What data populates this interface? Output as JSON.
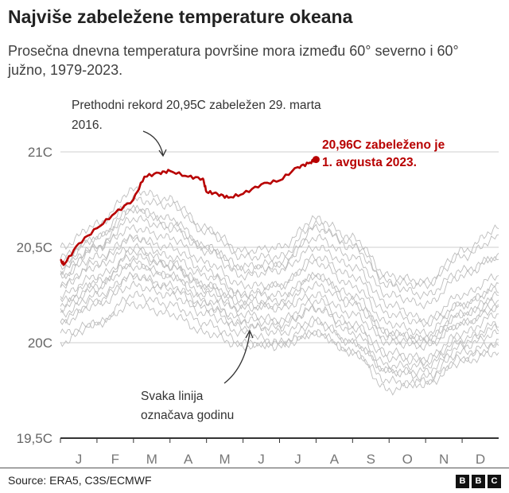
{
  "title": "Najviše zabeležene temperature okeana",
  "subtitle": "Prosečna dnevna temperatura površine mora između 60° severno i 60° južno, 1979-2023.",
  "source": "Source: ERA5, C3S/ECMWF",
  "logo": "BBC",
  "chart_data": {
    "type": "line",
    "title": "Najviše zabeležene temperature okeana",
    "ylim": [
      19.5,
      21.05
    ],
    "y_ticks": [
      21,
      20.5,
      20,
      19.5
    ],
    "y_tick_labels": [
      "21C",
      "20,5C",
      "20C",
      "19,5C"
    ],
    "x_tick_labels": [
      "J",
      "F",
      "M",
      "A",
      "M",
      "J",
      "J",
      "A",
      "S",
      "O",
      "N",
      "D"
    ],
    "grid": true,
    "highlight_series": {
      "year": "2023",
      "color": "#b80000",
      "x_month": [
        0,
        0.1,
        0.5,
        1,
        1.5,
        2,
        2.3,
        2.7,
        3.0,
        3.5,
        3.9,
        4.0,
        4.3,
        4.6,
        5.0,
        5.5,
        6.0,
        6.5,
        6.8,
        7.0
      ],
      "values": [
        20.43,
        20.41,
        20.52,
        20.6,
        20.68,
        20.75,
        20.87,
        20.89,
        20.9,
        20.87,
        20.86,
        20.79,
        20.78,
        20.76,
        20.78,
        20.83,
        20.85,
        20.92,
        20.94,
        20.96
      ]
    },
    "other_years_monthly": [
      [
        20.05,
        20.1,
        20.25,
        20.2,
        20.1,
        20.0,
        19.98,
        20.05,
        19.95,
        19.8,
        19.78,
        19.9,
        19.95
      ],
      [
        20.1,
        20.2,
        20.3,
        20.25,
        20.15,
        20.05,
        20.0,
        20.1,
        20.0,
        19.85,
        19.82,
        19.95,
        20.0
      ],
      [
        20.15,
        20.25,
        20.35,
        20.3,
        20.2,
        20.1,
        20.05,
        20.12,
        20.0,
        19.85,
        19.85,
        19.98,
        20.05
      ],
      [
        20.0,
        20.1,
        20.2,
        20.15,
        20.05,
        19.98,
        20.0,
        20.05,
        19.95,
        19.75,
        19.8,
        19.92,
        19.98
      ],
      [
        20.2,
        20.3,
        20.4,
        20.35,
        20.22,
        20.12,
        20.1,
        20.18,
        20.08,
        19.92,
        19.9,
        20.02,
        20.1
      ],
      [
        20.25,
        20.35,
        20.45,
        20.4,
        20.28,
        20.15,
        20.12,
        20.22,
        20.1,
        19.95,
        19.92,
        20.05,
        20.15
      ],
      [
        20.3,
        20.4,
        20.5,
        20.42,
        20.3,
        20.2,
        20.18,
        20.25,
        20.15,
        20.0,
        19.98,
        20.1,
        20.2
      ],
      [
        20.22,
        20.32,
        20.42,
        20.35,
        20.25,
        20.18,
        20.2,
        20.3,
        20.2,
        20.02,
        20.0,
        20.1,
        20.18
      ],
      [
        20.35,
        20.45,
        20.55,
        20.5,
        20.38,
        20.25,
        20.25,
        20.35,
        20.22,
        20.05,
        20.02,
        20.15,
        20.25
      ],
      [
        20.4,
        20.5,
        20.6,
        20.55,
        20.42,
        20.3,
        20.3,
        20.42,
        20.3,
        20.1,
        20.05,
        20.2,
        20.3
      ],
      [
        20.3,
        20.42,
        20.55,
        20.45,
        20.35,
        20.25,
        20.3,
        20.45,
        20.35,
        20.15,
        20.1,
        20.2,
        20.28
      ],
      [
        20.38,
        20.5,
        20.65,
        20.6,
        20.48,
        20.35,
        20.38,
        20.5,
        20.4,
        20.2,
        20.12,
        20.25,
        20.35
      ],
      [
        20.45,
        20.55,
        20.7,
        20.62,
        20.5,
        20.4,
        20.42,
        20.55,
        20.45,
        20.25,
        20.2,
        20.35,
        20.45
      ],
      [
        20.42,
        20.55,
        20.75,
        20.72,
        20.58,
        20.45,
        20.45,
        20.62,
        20.5,
        20.3,
        20.25,
        20.38,
        20.45
      ],
      [
        20.5,
        20.62,
        20.8,
        20.75,
        20.6,
        20.48,
        20.5,
        20.65,
        20.55,
        20.35,
        20.32,
        20.48,
        20.6
      ],
      [
        20.35,
        20.5,
        20.7,
        20.65,
        20.5,
        20.38,
        20.4,
        20.6,
        20.52,
        20.32,
        20.3,
        20.45,
        20.55
      ],
      [
        20.12,
        20.22,
        20.35,
        20.28,
        20.18,
        20.08,
        20.08,
        20.18,
        20.05,
        19.88,
        19.88,
        20.0,
        20.08
      ],
      [
        20.18,
        20.28,
        20.48,
        20.4,
        20.3,
        20.22,
        20.22,
        20.35,
        20.25,
        20.05,
        20.02,
        20.15,
        20.22
      ]
    ],
    "annotations": [
      {
        "text": "Prethodni rekord 20,95C zabeležen 29. marta 2016."
      },
      {
        "text": "20,96C zabeleženo je 1. avgusta 2023."
      },
      {
        "text": "Svaka linija označava godinu"
      }
    ]
  }
}
